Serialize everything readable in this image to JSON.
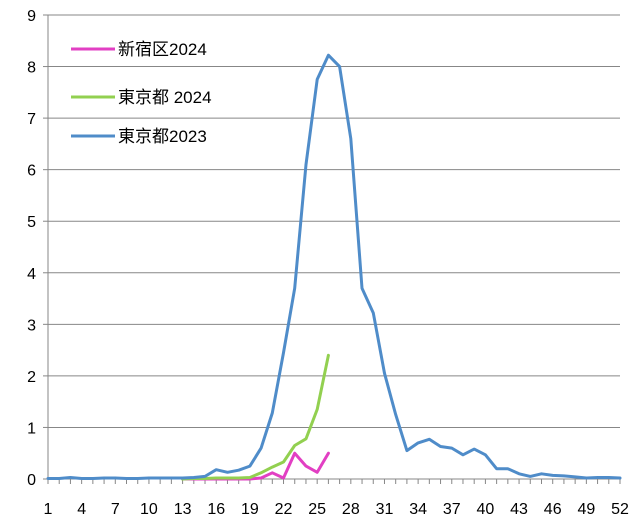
{
  "chart_data": {
    "type": "line",
    "title": "",
    "xlabel": "",
    "ylabel": "",
    "xlim": [
      1,
      52
    ],
    "ylim": [
      0,
      9
    ],
    "grid": true,
    "legend_position": "top-left",
    "y_ticks": [
      "0",
      "1",
      "2",
      "3",
      "4",
      "5",
      "6",
      "7",
      "8",
      "9"
    ],
    "x_ticks": [
      "1",
      "4",
      "7",
      "10",
      "13",
      "16",
      "19",
      "22",
      "25",
      "28",
      "31",
      "34",
      "37",
      "40",
      "43",
      "46",
      "49",
      "52"
    ],
    "x_tick_values": [
      1,
      4,
      7,
      10,
      13,
      16,
      19,
      22,
      25,
      28,
      31,
      34,
      37,
      40,
      43,
      46,
      49,
      52
    ],
    "series": [
      {
        "name": "新宿区2024",
        "color": "#e23fc3",
        "x": [
          13,
          14,
          15,
          16,
          17,
          18,
          19,
          20,
          21,
          22,
          23,
          24,
          25,
          26
        ],
        "values": [
          0,
          0,
          0,
          0,
          0,
          0,
          0,
          0.02,
          0.12,
          0.02,
          0.5,
          0.25,
          0.13,
          0.5
        ]
      },
      {
        "name": "東京都 2024",
        "color": "#92d050",
        "x": [
          13,
          14,
          15,
          16,
          17,
          18,
          19,
          20,
          21,
          22,
          23,
          24,
          25,
          26
        ],
        "values": [
          0,
          0.01,
          0.01,
          0.02,
          0.02,
          0.02,
          0.03,
          0.12,
          0.23,
          0.33,
          0.65,
          0.78,
          1.35,
          2.4
        ]
      },
      {
        "name": "東京都2023",
        "color": "#4f8cc9",
        "x": [
          1,
          2,
          3,
          4,
          5,
          6,
          7,
          8,
          9,
          10,
          11,
          12,
          13,
          14,
          15,
          16,
          17,
          18,
          19,
          20,
          21,
          22,
          23,
          24,
          25,
          26,
          27,
          28,
          29,
          30,
          31,
          32,
          33,
          34,
          35,
          36,
          37,
          38,
          39,
          40,
          41,
          42,
          43,
          44,
          45,
          46,
          47,
          48,
          49,
          50,
          51,
          52
        ],
        "values": [
          0.01,
          0.01,
          0.03,
          0.01,
          0.01,
          0.02,
          0.02,
          0.01,
          0.01,
          0.02,
          0.02,
          0.02,
          0.02,
          0.03,
          0.05,
          0.18,
          0.13,
          0.17,
          0.25,
          0.6,
          1.28,
          2.45,
          3.7,
          6.1,
          7.75,
          8.22,
          8.0,
          6.6,
          3.7,
          3.22,
          2.05,
          1.25,
          0.55,
          0.7,
          0.77,
          0.63,
          0.6,
          0.47,
          0.58,
          0.47,
          0.2,
          0.2,
          0.1,
          0.05,
          0.1,
          0.07,
          0.06,
          0.04,
          0.02,
          0.03,
          0.03,
          0.02
        ]
      }
    ]
  }
}
